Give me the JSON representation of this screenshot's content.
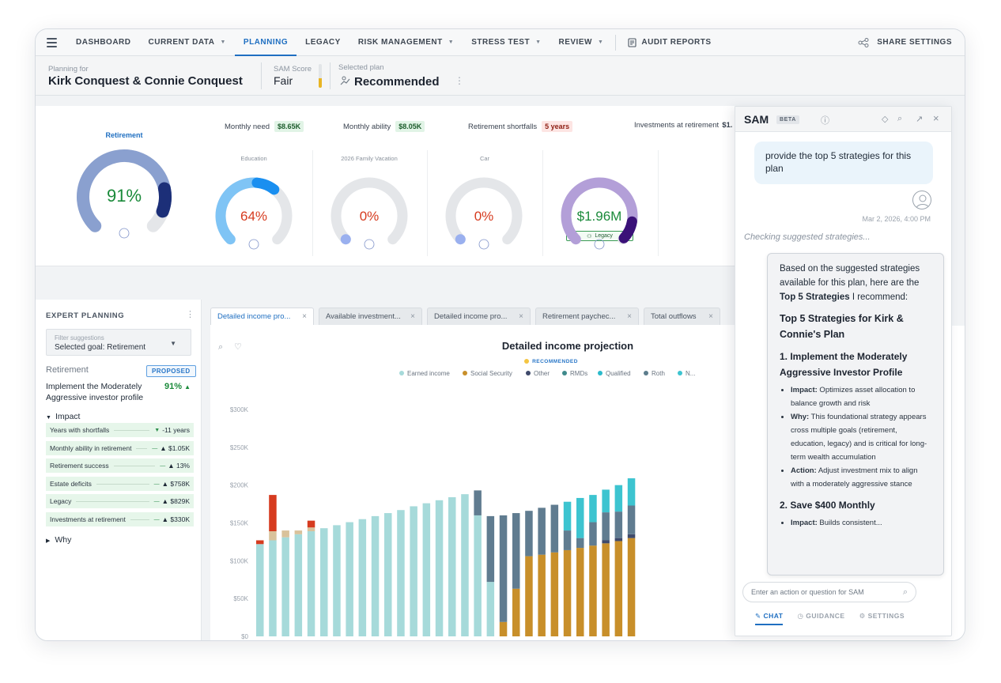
{
  "nav": {
    "items": [
      {
        "label": "DASHBOARD",
        "dropdown": false,
        "active": false
      },
      {
        "label": "CURRENT DATA",
        "dropdown": true,
        "active": false
      },
      {
        "label": "PLANNING",
        "dropdown": false,
        "active": true
      },
      {
        "label": "LEGACY",
        "dropdown": false,
        "active": false
      },
      {
        "label": "RISK MANAGEMENT",
        "dropdown": true,
        "active": false
      },
      {
        "label": "STRESS TEST",
        "dropdown": true,
        "active": false
      },
      {
        "label": "REVIEW",
        "dropdown": true,
        "active": false
      }
    ],
    "audit_label": "AUDIT REPORTS",
    "share_label": "SHARE SETTINGS"
  },
  "header": {
    "planning_for_label": "Planning for",
    "client_names": "Kirk Conquest & Connie Conquest",
    "sam_score_label": "SAM Score",
    "sam_score_value": "Fair",
    "sam_score_level": 0.4,
    "selected_plan_label": "Selected plan",
    "selected_plan_value": "Recommended"
  },
  "summary": {
    "retirement_title": "Retirement",
    "monthly_need_label": "Monthly need",
    "monthly_need_value": "$8.65K",
    "monthly_ability_label": "Monthly ability",
    "monthly_ability_value": "$8.05K",
    "shortfalls_label": "Retirement shortfalls",
    "shortfalls_value": "5 years",
    "investments_label": "Investments at retirement",
    "investments_value": "$1."
  },
  "gauges": [
    {
      "title": "Retirement",
      "value": "91%",
      "fraction": 0.91,
      "color": "#8aa0cf",
      "dark": "#1c2f78",
      "text_color": "#1a8a3a"
    },
    {
      "title": "Education",
      "value": "64%",
      "fraction": 0.64,
      "color": "#7fc4f5",
      "dark": "#1a8ff0",
      "text_color": "#d63b1f"
    },
    {
      "title": "2026 Family Vacation",
      "value": "0%",
      "fraction": 0.0,
      "color": "#e3e5e8",
      "dark": "#9ab0ef",
      "text_color": "#d63b1f"
    },
    {
      "title": "Car",
      "value": "0%",
      "fraction": 0.0,
      "color": "#e3e5e8",
      "dark": "#9ab0ef",
      "text_color": "#d63b1f"
    },
    {
      "title": "Legacy",
      "value": "$1.96M",
      "fraction": 0.99,
      "color": "#b39fd8",
      "dark": "#3a1178",
      "text_color": "#1a8a3a"
    }
  ],
  "expert": {
    "title": "EXPERT PLANNING",
    "filter_placeholder": "Filter suggestions",
    "filter_value": "Selected goal: Retirement",
    "goal_label": "Retirement",
    "proposed_badge": "PROPOSED",
    "strategy": "Implement the Moderately Aggressive investor profile",
    "strategy_pct": "91%",
    "impact_label": "Impact",
    "why_label": "Why",
    "impacts": [
      {
        "label": "Years with shortfalls",
        "dir": "▼",
        "value": "-11 years"
      },
      {
        "label": "Monthly ability in retirement",
        "dir": "—",
        "value": "▲ $1.05K"
      },
      {
        "label": "Retirement success",
        "dir": "—",
        "value": "▲ 13%"
      },
      {
        "label": "Estate deficits",
        "dir": "—",
        "value": "▲ $758K"
      },
      {
        "label": "Legacy",
        "dir": "—",
        "value": "▲ $829K"
      },
      {
        "label": "Investments at retirement",
        "dir": "—",
        "value": "▲ $330K"
      }
    ]
  },
  "tabs": [
    {
      "label": "Detailed income pro...",
      "active": true
    },
    {
      "label": "Available investment...",
      "active": false
    },
    {
      "label": "Detailed income pro...",
      "active": false
    },
    {
      "label": "Retirement paychec...",
      "active": false
    },
    {
      "label": "Total outflows",
      "active": false
    }
  ],
  "chart_data": {
    "type": "bar",
    "stacked": true,
    "title": "Detailed income projection",
    "badge": "RECOMMENDED",
    "ylim": [
      0,
      300000
    ],
    "yticks": [
      "$0",
      "$50K",
      "$100K",
      "$150K",
      "$200K",
      "$250K",
      "$300K"
    ],
    "ytick_values": [
      0,
      50000,
      100000,
      150000,
      200000,
      250000,
      300000
    ],
    "legend": [
      {
        "name": "Earned income",
        "color": "#a6dada"
      },
      {
        "name": "Social Security",
        "color": "#c88f2a"
      },
      {
        "name": "Other",
        "color": "#3f4a6b"
      },
      {
        "name": "RMDs",
        "color": "#3f8a8c"
      },
      {
        "name": "Qualified",
        "color": "#2bbacb"
      },
      {
        "name": "Roth",
        "color": "#5c7d8c"
      },
      {
        "name": "N...",
        "color": "#3dc4d0"
      }
    ],
    "extra_colors": {
      "red": "#d63b1f",
      "tan": "#d9c29b",
      "slate": "#607c90"
    },
    "bars": [
      [
        {
          "c": "#a6dada",
          "v": 122000
        },
        {
          "c": "#d63b1f",
          "v": 5000
        }
      ],
      [
        {
          "c": "#a6dada",
          "v": 127000
        },
        {
          "c": "#d9c29b",
          "v": 12000
        },
        {
          "c": "#d63b1f",
          "v": 48000
        }
      ],
      [
        {
          "c": "#a6dada",
          "v": 131000
        },
        {
          "c": "#d9c29b",
          "v": 9000
        }
      ],
      [
        {
          "c": "#a6dada",
          "v": 135000
        },
        {
          "c": "#d9c29b",
          "v": 5000
        }
      ],
      [
        {
          "c": "#a6dada",
          "v": 139000
        },
        {
          "c": "#d9c29b",
          "v": 5000
        },
        {
          "c": "#d63b1f",
          "v": 9000
        }
      ],
      [
        {
          "c": "#a6dada",
          "v": 143000
        }
      ],
      [
        {
          "c": "#a6dada",
          "v": 147000
        }
      ],
      [
        {
          "c": "#a6dada",
          "v": 151000
        }
      ],
      [
        {
          "c": "#a6dada",
          "v": 155000
        }
      ],
      [
        {
          "c": "#a6dada",
          "v": 159000
        }
      ],
      [
        {
          "c": "#a6dada",
          "v": 163000
        }
      ],
      [
        {
          "c": "#a6dada",
          "v": 167000
        }
      ],
      [
        {
          "c": "#a6dada",
          "v": 172000
        }
      ],
      [
        {
          "c": "#a6dada",
          "v": 176000
        }
      ],
      [
        {
          "c": "#a6dada",
          "v": 180000
        }
      ],
      [
        {
          "c": "#a6dada",
          "v": 184000
        }
      ],
      [
        {
          "c": "#a6dada",
          "v": 188000
        }
      ],
      [
        {
          "c": "#a6dada",
          "v": 160000
        },
        {
          "c": "#607c90",
          "v": 33000
        }
      ],
      [
        {
          "c": "#a6dada",
          "v": 72000
        },
        {
          "c": "#607c90",
          "v": 87000
        }
      ],
      [
        {
          "c": "#c88f2a",
          "v": 19000
        },
        {
          "c": "#607c90",
          "v": 141000
        }
      ],
      [
        {
          "c": "#c88f2a",
          "v": 63000
        },
        {
          "c": "#607c90",
          "v": 100000
        }
      ],
      [
        {
          "c": "#c88f2a",
          "v": 106000
        },
        {
          "c": "#607c90",
          "v": 60000
        }
      ],
      [
        {
          "c": "#c88f2a",
          "v": 108000
        },
        {
          "c": "#607c90",
          "v": 62000
        }
      ],
      [
        {
          "c": "#c88f2a",
          "v": 111000
        },
        {
          "c": "#607c90",
          "v": 63000
        }
      ],
      [
        {
          "c": "#c88f2a",
          "v": 114000
        },
        {
          "c": "#607c90",
          "v": 26000
        },
        {
          "c": "#3dc4d0",
          "v": 38000
        }
      ],
      [
        {
          "c": "#c88f2a",
          "v": 117000
        },
        {
          "c": "#607c90",
          "v": 13000
        },
        {
          "c": "#3dc4d0",
          "v": 53000
        }
      ],
      [
        {
          "c": "#c88f2a",
          "v": 120000
        },
        {
          "c": "#607c90",
          "v": 31000
        },
        {
          "c": "#3dc4d0",
          "v": 36000
        }
      ],
      [
        {
          "c": "#c88f2a",
          "v": 123000
        },
        {
          "c": "#3f4a6b",
          "v": 4000
        },
        {
          "c": "#607c90",
          "v": 37000
        },
        {
          "c": "#3dc4d0",
          "v": 30000
        }
      ],
      [
        {
          "c": "#c88f2a",
          "v": 126000
        },
        {
          "c": "#3f4a6b",
          "v": 4000
        },
        {
          "c": "#607c90",
          "v": 35000
        },
        {
          "c": "#3dc4d0",
          "v": 35000
        }
      ],
      [
        {
          "c": "#c88f2a",
          "v": 130000
        },
        {
          "c": "#3f4a6b",
          "v": 5000
        },
        {
          "c": "#607c90",
          "v": 38000
        },
        {
          "c": "#3dc4d0",
          "v": 36000
        }
      ]
    ]
  },
  "sam": {
    "title": "SAM",
    "beta": "BETA",
    "user_message": "provide the top 5 strategies for this plan",
    "timestamp": "Mar 2, 2026, 4:00 PM",
    "checking": "Checking suggested strategies...",
    "intro_1": "Based on the suggested strategies available for this plan, here are the ",
    "intro_bold": "Top 5 Strategies",
    "intro_2": " I recommend:",
    "heading": "Top 5 Strategies for Kirk & Connie's Plan",
    "s1_title": "1. Implement the Moderately Aggressive Investor Profile",
    "s1_impact_label": "Impact:",
    "s1_impact": " Optimizes asset allocation to balance growth and risk",
    "s1_why_label": "Why:",
    "s1_why": " This foundational strategy appears cross multiple goals (retirement, education, legacy) and is critical for long-term wealth accumulation",
    "s1_action_label": "Action:",
    "s1_action": " Adjust investment mix to align with a moderately aggressive stance",
    "s2_title": "2. Save $400 Monthly",
    "s2_impact_label": "Impact:",
    "s2_impact": " Builds consistent...",
    "input_placeholder": "Enter an action or question for SAM",
    "tab_chat": "CHAT",
    "tab_guidance": "GUIDANCE",
    "tab_settings": "SETTINGS"
  }
}
